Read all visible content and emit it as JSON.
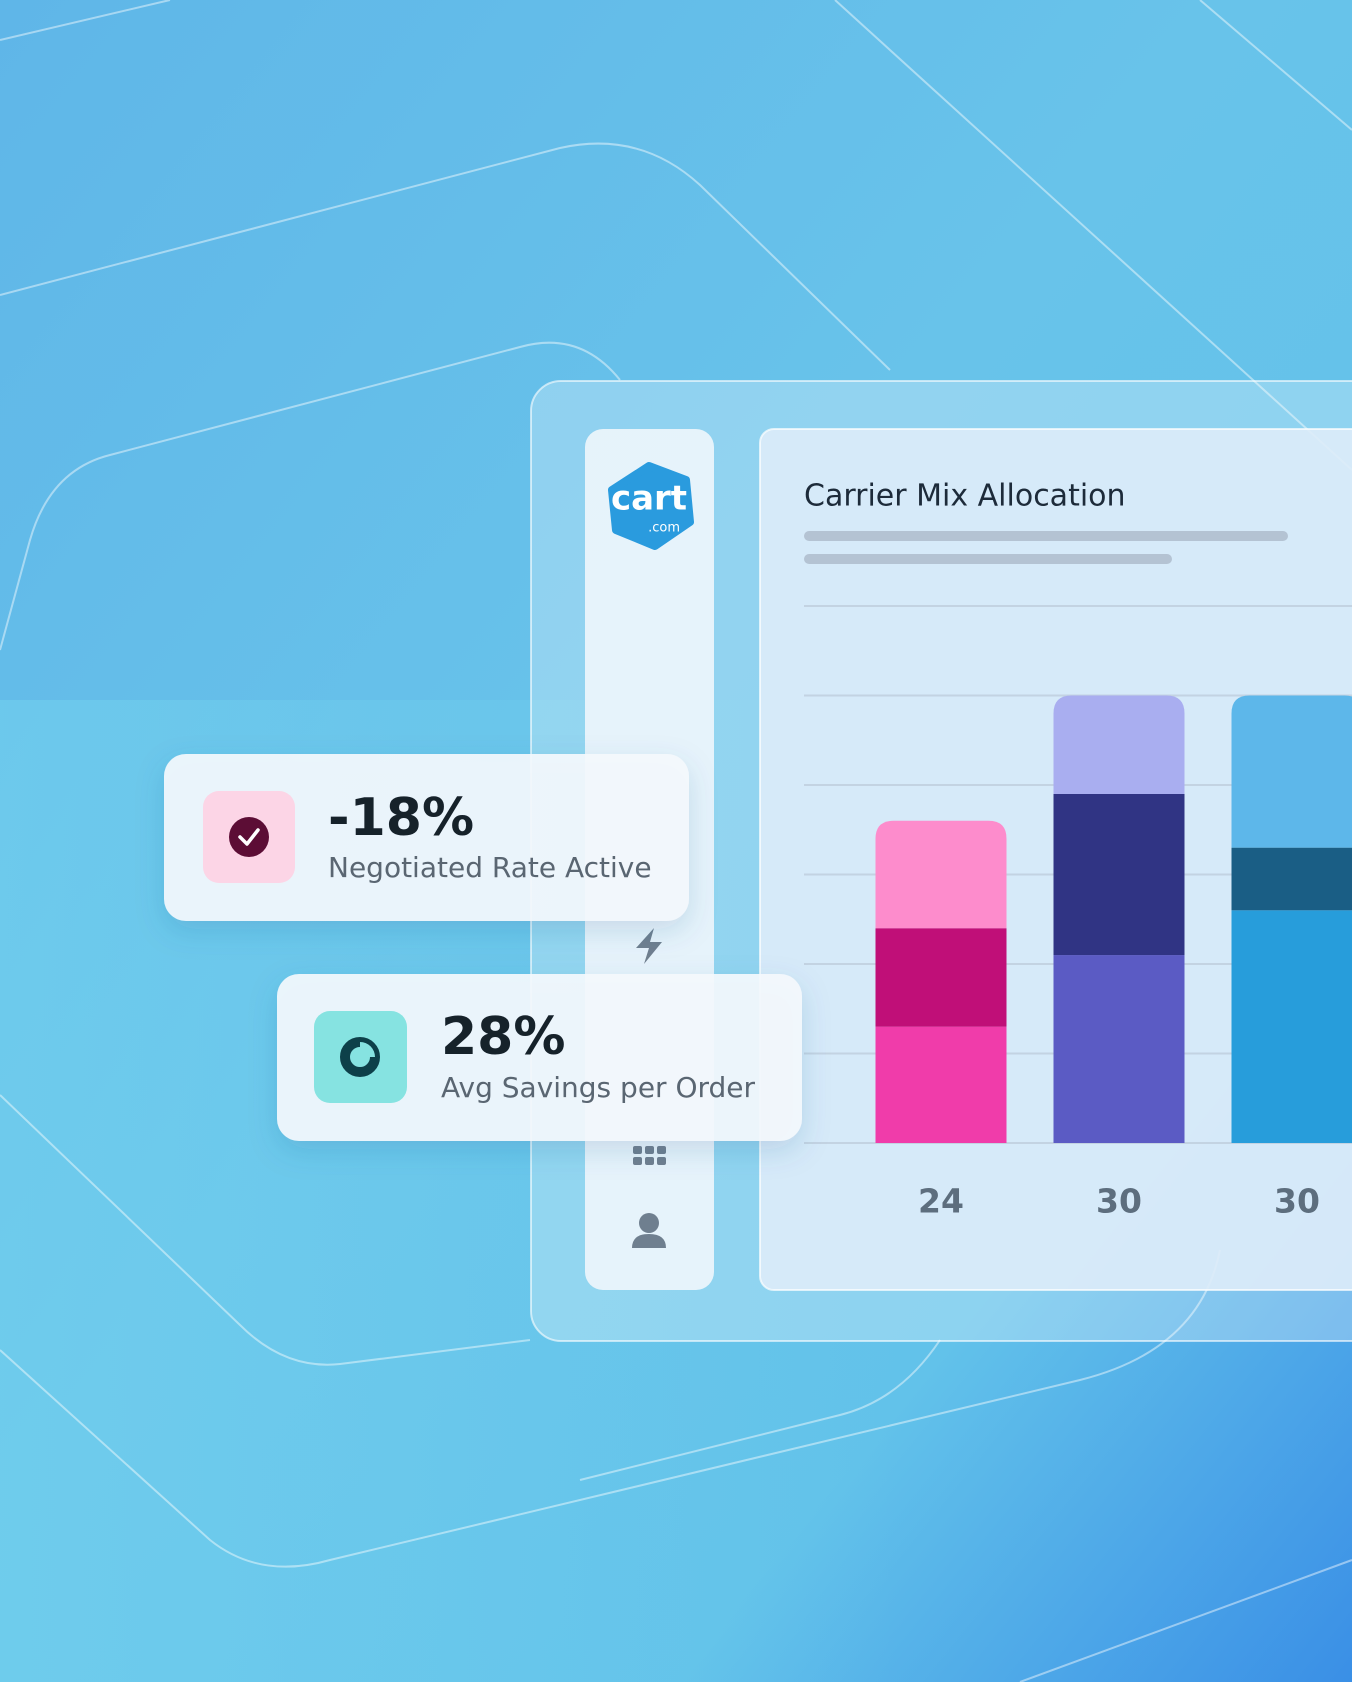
{
  "logo": {
    "word": "cart",
    "suffix": ".com"
  },
  "cards": [
    {
      "value": "-18%",
      "label": "Negotiated Rate Active"
    },
    {
      "value": "28%",
      "label": "Avg Savings per Order"
    }
  ],
  "chart_data": {
    "type": "bar",
    "stacked": true,
    "title": "Carrier Mix Allocation",
    "categories": [
      "24",
      "30",
      "30"
    ],
    "series": [
      {
        "colors": [
          "#f03caa",
          "#5b5bc4",
          "#279ddb"
        ],
        "values": [
          1.3,
          2.1,
          2.6
        ]
      },
      {
        "colors": [
          "#c00f78",
          "#303484",
          "#1a5e85"
        ],
        "values": [
          1.1,
          1.8,
          0.7
        ]
      },
      {
        "colors": [
          "#fd8ccc",
          "#a9aef0",
          "#5db7ea"
        ],
        "values": [
          1.2,
          1.1,
          1.7
        ]
      }
    ],
    "ylim": [
      0,
      6
    ],
    "yticks": [
      0,
      1,
      2,
      3,
      4,
      5,
      6
    ],
    "grid": true
  }
}
